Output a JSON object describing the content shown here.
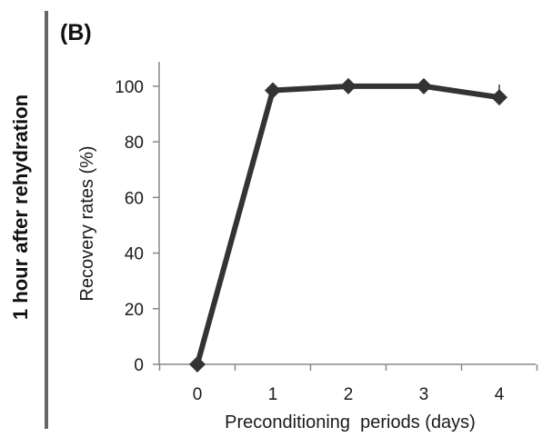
{
  "panel_label": "(B)",
  "side_label": "1 hour after rehydration",
  "colors": {
    "line": "#333333",
    "axis": "#888888",
    "side_bar": "#666666",
    "text": "#1a1a1a"
  },
  "chart_data": {
    "type": "line",
    "x": [
      0,
      1,
      2,
      3,
      4
    ],
    "categories": [
      "0",
      "1",
      "2",
      "3",
      "4"
    ],
    "series": [
      {
        "values": [
          0,
          98.5,
          100,
          100,
          96
        ],
        "marker": "diamond"
      }
    ],
    "xlabel": "Preconditioning  periods (days)",
    "ylabel": "Recovery rates (%)",
    "yticks": [
      0,
      20,
      40,
      60,
      80,
      100
    ],
    "ylim": [
      0,
      110
    ],
    "grid": false,
    "legend": "none"
  }
}
